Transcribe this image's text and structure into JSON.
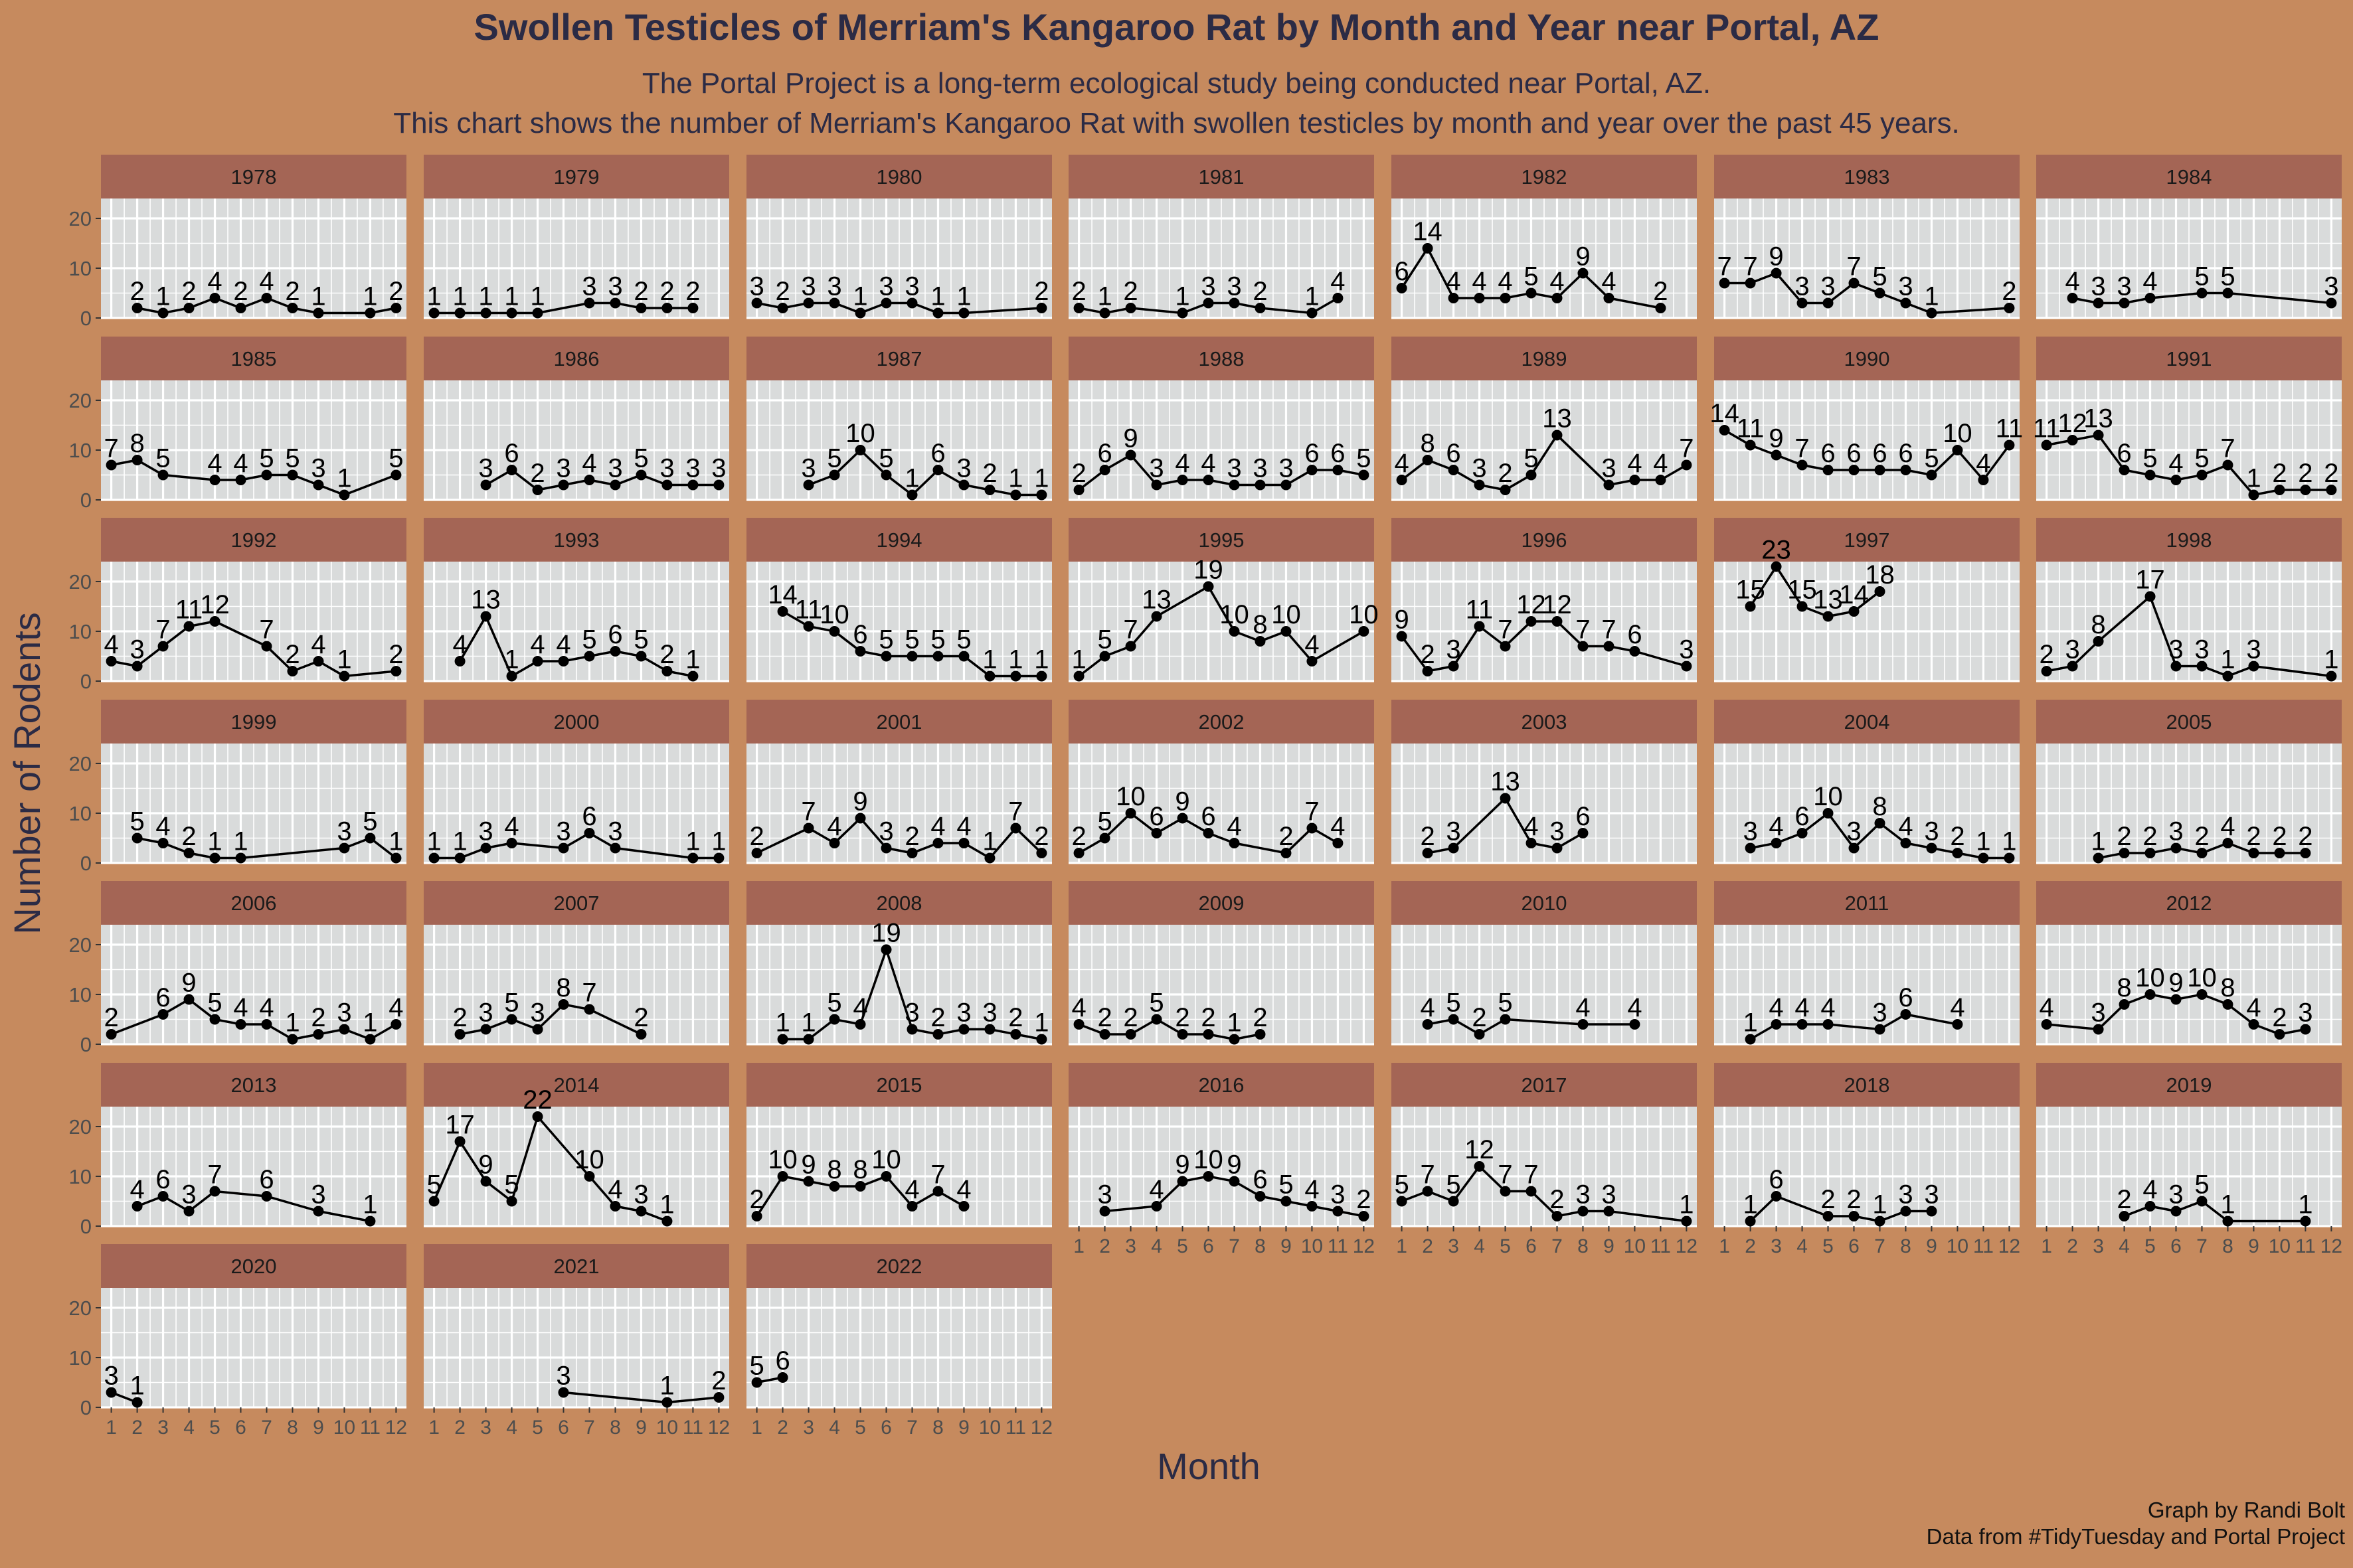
{
  "title": "Swollen Testicles of Merriam's Kangaroo Rat by Month and Year near Portal, AZ",
  "subtitle_line1": "The Portal Project is a long-term ecological study being conducted near Portal, AZ.",
  "subtitle_line2": "This chart shows the number of Merriam's Kangaroo Rat with swollen testicles by month and year over the past 45 years.",
  "caption_line1": "Graph by Randi Bolt",
  "caption_line2": "Data from #TidyTuesday and Portal Project",
  "colors": {
    "background": "#C68A5E",
    "panel": "#D9DBDB",
    "strip": "#A46555",
    "grid": "#FFFFFF",
    "title": "#2B2B45",
    "line": "#000000"
  },
  "chart_data": {
    "type": "line",
    "facet_by": "year",
    "xlabel": "Month",
    "ylabel": "Number of Rodents",
    "x_ticks": [
      1,
      2,
      3,
      4,
      5,
      6,
      7,
      8,
      9,
      10,
      11,
      12
    ],
    "y_ticks": [
      0,
      10,
      20
    ],
    "xlim": [
      0.6,
      12.4
    ],
    "ylim": [
      0,
      24
    ],
    "grid": true,
    "point_labels": true,
    "series": [
      {
        "name": "1978",
        "x": [
          2,
          3,
          4,
          5,
          6,
          7,
          8,
          9,
          11,
          12
        ],
        "y": [
          2,
          1,
          2,
          4,
          2,
          4,
          2,
          1,
          1,
          2
        ]
      },
      {
        "name": "1979",
        "x": [
          1,
          2,
          3,
          4,
          5,
          7,
          8,
          9,
          10,
          11
        ],
        "y": [
          1,
          1,
          1,
          1,
          1,
          3,
          3,
          2,
          2,
          2
        ]
      },
      {
        "name": "1980",
        "x": [
          1,
          2,
          3,
          4,
          5,
          6,
          7,
          8,
          9,
          12
        ],
        "y": [
          3,
          2,
          3,
          3,
          1,
          3,
          3,
          1,
          1,
          2
        ]
      },
      {
        "name": "1981",
        "x": [
          1,
          2,
          3,
          5,
          6,
          7,
          8,
          10,
          11
        ],
        "y": [
          2,
          1,
          2,
          1,
          3,
          3,
          2,
          1,
          4
        ]
      },
      {
        "name": "1982",
        "x": [
          1,
          2,
          3,
          4,
          5,
          6,
          7,
          8,
          9,
          11
        ],
        "y": [
          6,
          14,
          4,
          4,
          4,
          5,
          4,
          9,
          4,
          2
        ]
      },
      {
        "name": "1983",
        "x": [
          1,
          2,
          3,
          4,
          5,
          6,
          7,
          8,
          9,
          12
        ],
        "y": [
          7,
          7,
          9,
          3,
          3,
          7,
          5,
          3,
          1,
          2
        ]
      },
      {
        "name": "1984",
        "x": [
          2,
          3,
          4,
          5,
          7,
          8,
          12
        ],
        "y": [
          4,
          3,
          3,
          4,
          5,
          5,
          3
        ]
      },
      {
        "name": "1985",
        "x": [
          1,
          2,
          3,
          5,
          6,
          7,
          8,
          9,
          10,
          12
        ],
        "y": [
          7,
          8,
          5,
          4,
          4,
          5,
          5,
          3,
          1,
          5
        ]
      },
      {
        "name": "1986",
        "x": [
          3,
          4,
          5,
          6,
          7,
          8,
          9,
          10,
          11,
          12
        ],
        "y": [
          3,
          6,
          2,
          3,
          4,
          3,
          5,
          3,
          3,
          3
        ]
      },
      {
        "name": "1987",
        "x": [
          3,
          4,
          5,
          6,
          7,
          8,
          9,
          10,
          11,
          12
        ],
        "y": [
          3,
          5,
          10,
          5,
          1,
          6,
          3,
          2,
          1,
          1
        ]
      },
      {
        "name": "1988",
        "x": [
          1,
          2,
          3,
          4,
          5,
          6,
          7,
          8,
          9,
          10,
          11,
          12
        ],
        "y": [
          2,
          6,
          9,
          3,
          4,
          4,
          3,
          3,
          3,
          6,
          6,
          5
        ]
      },
      {
        "name": "1989",
        "x": [
          1,
          2,
          3,
          4,
          5,
          6,
          7,
          9,
          10,
          11,
          12
        ],
        "y": [
          4,
          8,
          6,
          3,
          2,
          5,
          13,
          3,
          4,
          4,
          7
        ]
      },
      {
        "name": "1990",
        "x": [
          1,
          2,
          3,
          4,
          5,
          6,
          7,
          8,
          9,
          10,
          11,
          12
        ],
        "y": [
          14,
          11,
          9,
          7,
          6,
          6,
          6,
          6,
          5,
          10,
          4,
          11
        ]
      },
      {
        "name": "1991",
        "x": [
          1,
          2,
          3,
          4,
          5,
          6,
          7,
          8,
          9,
          10,
          11,
          12
        ],
        "y": [
          11,
          12,
          13,
          6,
          5,
          4,
          5,
          7,
          1,
          2,
          2,
          2
        ]
      },
      {
        "name": "1992",
        "x": [
          1,
          2,
          3,
          4,
          5,
          7,
          8,
          9,
          10,
          12
        ],
        "y": [
          4,
          3,
          7,
          11,
          12,
          7,
          2,
          4,
          1,
          2
        ]
      },
      {
        "name": "1993",
        "x": [
          2,
          3,
          4,
          5,
          6,
          7,
          8,
          9,
          10,
          11
        ],
        "y": [
          4,
          13,
          1,
          4,
          4,
          5,
          6,
          5,
          2,
          1
        ]
      },
      {
        "name": "1994",
        "x": [
          2,
          3,
          4,
          5,
          6,
          7,
          8,
          9,
          10,
          11,
          12
        ],
        "y": [
          14,
          11,
          10,
          6,
          5,
          5,
          5,
          5,
          1,
          1,
          1
        ]
      },
      {
        "name": "1995",
        "x": [
          1,
          2,
          3,
          4,
          6,
          7,
          8,
          9,
          10,
          12
        ],
        "y": [
          1,
          5,
          7,
          13,
          19,
          10,
          8,
          10,
          4,
          10
        ]
      },
      {
        "name": "1996",
        "x": [
          1,
          2,
          3,
          4,
          5,
          6,
          7,
          8,
          9,
          10,
          12
        ],
        "y": [
          9,
          2,
          3,
          11,
          7,
          12,
          12,
          7,
          7,
          6,
          3
        ]
      },
      {
        "name": "1997",
        "x": [
          2,
          3,
          4,
          5,
          6,
          7
        ],
        "y": [
          15,
          23,
          15,
          13,
          14,
          18
        ]
      },
      {
        "name": "1998",
        "x": [
          1,
          2,
          3,
          5,
          6,
          7,
          8,
          9,
          12
        ],
        "y": [
          2,
          3,
          8,
          17,
          3,
          3,
          1,
          3,
          1
        ]
      },
      {
        "name": "1999",
        "x": [
          2,
          3,
          4,
          5,
          6,
          10,
          11,
          12
        ],
        "y": [
          5,
          4,
          2,
          1,
          1,
          3,
          5,
          1
        ]
      },
      {
        "name": "2000",
        "x": [
          1,
          2,
          3,
          4,
          6,
          7,
          8,
          11,
          12
        ],
        "y": [
          1,
          1,
          3,
          4,
          3,
          6,
          3,
          1,
          1
        ]
      },
      {
        "name": "2001",
        "x": [
          1,
          3,
          4,
          5,
          6,
          7,
          8,
          9,
          10,
          11,
          12
        ],
        "y": [
          2,
          7,
          4,
          9,
          3,
          2,
          4,
          4,
          1,
          7,
          2
        ]
      },
      {
        "name": "2002",
        "x": [
          1,
          2,
          3,
          4,
          5,
          6,
          7,
          9,
          10,
          11
        ],
        "y": [
          2,
          5,
          10,
          6,
          9,
          6,
          4,
          2,
          7,
          4
        ]
      },
      {
        "name": "2003",
        "x": [
          2,
          3,
          5,
          6,
          7,
          8
        ],
        "y": [
          2,
          3,
          13,
          4,
          3,
          6
        ]
      },
      {
        "name": "2004",
        "x": [
          2,
          3,
          4,
          5,
          6,
          7,
          8,
          9,
          10,
          11,
          12
        ],
        "y": [
          3,
          4,
          6,
          10,
          3,
          8,
          4,
          3,
          2,
          1,
          1
        ]
      },
      {
        "name": "2005",
        "x": [
          3,
          4,
          5,
          6,
          7,
          8,
          9,
          10,
          11
        ],
        "y": [
          1,
          2,
          2,
          3,
          2,
          4,
          2,
          2,
          2
        ]
      },
      {
        "name": "2006",
        "x": [
          1,
          3,
          4,
          5,
          6,
          7,
          8,
          9,
          10,
          11,
          12
        ],
        "y": [
          2,
          6,
          9,
          5,
          4,
          4,
          1,
          2,
          3,
          1,
          4
        ]
      },
      {
        "name": "2007",
        "x": [
          2,
          3,
          4,
          5,
          6,
          7,
          9
        ],
        "y": [
          2,
          3,
          5,
          3,
          8,
          7,
          2
        ]
      },
      {
        "name": "2008",
        "x": [
          2,
          3,
          4,
          5,
          6,
          7,
          8,
          9,
          10,
          11,
          12
        ],
        "y": [
          1,
          1,
          5,
          4,
          19,
          3,
          2,
          3,
          3,
          2,
          1
        ]
      },
      {
        "name": "2009",
        "x": [
          1,
          2,
          3,
          4,
          5,
          6,
          7,
          8
        ],
        "y": [
          4,
          2,
          2,
          5,
          2,
          2,
          1,
          2
        ]
      },
      {
        "name": "2010",
        "x": [
          2,
          3,
          4,
          5,
          8,
          10
        ],
        "y": [
          4,
          5,
          2,
          5,
          4,
          4
        ]
      },
      {
        "name": "2011",
        "x": [
          2,
          3,
          4,
          5,
          7,
          8,
          10
        ],
        "y": [
          1,
          4,
          4,
          4,
          3,
          6,
          4
        ]
      },
      {
        "name": "2012",
        "x": [
          1,
          3,
          4,
          5,
          6,
          7,
          8,
          9,
          10,
          11
        ],
        "y": [
          4,
          3,
          8,
          10,
          9,
          10,
          8,
          4,
          2,
          3
        ]
      },
      {
        "name": "2013",
        "x": [
          2,
          3,
          4,
          5,
          7,
          9,
          11
        ],
        "y": [
          4,
          6,
          3,
          7,
          6,
          3,
          1
        ]
      },
      {
        "name": "2014",
        "x": [
          1,
          2,
          3,
          4,
          5,
          7,
          8,
          9,
          10
        ],
        "y": [
          5,
          17,
          9,
          5,
          22,
          10,
          4,
          3,
          1
        ]
      },
      {
        "name": "2015",
        "x": [
          1,
          2,
          3,
          4,
          5,
          6,
          7,
          8,
          9
        ],
        "y": [
          2,
          10,
          9,
          8,
          8,
          10,
          4,
          7,
          4
        ]
      },
      {
        "name": "2016",
        "x": [
          2,
          4,
          5,
          6,
          7,
          8,
          9,
          10,
          11,
          12
        ],
        "y": [
          3,
          4,
          9,
          10,
          9,
          6,
          5,
          4,
          3,
          2
        ]
      },
      {
        "name": "2017",
        "x": [
          1,
          2,
          3,
          4,
          5,
          6,
          7,
          8,
          9,
          12
        ],
        "y": [
          5,
          7,
          5,
          12,
          7,
          7,
          2,
          3,
          3,
          1
        ]
      },
      {
        "name": "2018",
        "x": [
          2,
          3,
          5,
          6,
          7,
          8,
          9
        ],
        "y": [
          1,
          6,
          2,
          2,
          1,
          3,
          3
        ]
      },
      {
        "name": "2019",
        "x": [
          4,
          5,
          6,
          7,
          8,
          11
        ],
        "y": [
          2,
          4,
          3,
          5,
          1,
          1
        ]
      },
      {
        "name": "2020",
        "x": [
          1,
          2
        ],
        "y": [
          3,
          1
        ]
      },
      {
        "name": "2021",
        "x": [
          6,
          10,
          12
        ],
        "y": [
          3,
          1,
          2
        ]
      },
      {
        "name": "2022",
        "x": [
          1,
          2
        ],
        "y": [
          5,
          6
        ]
      }
    ]
  }
}
